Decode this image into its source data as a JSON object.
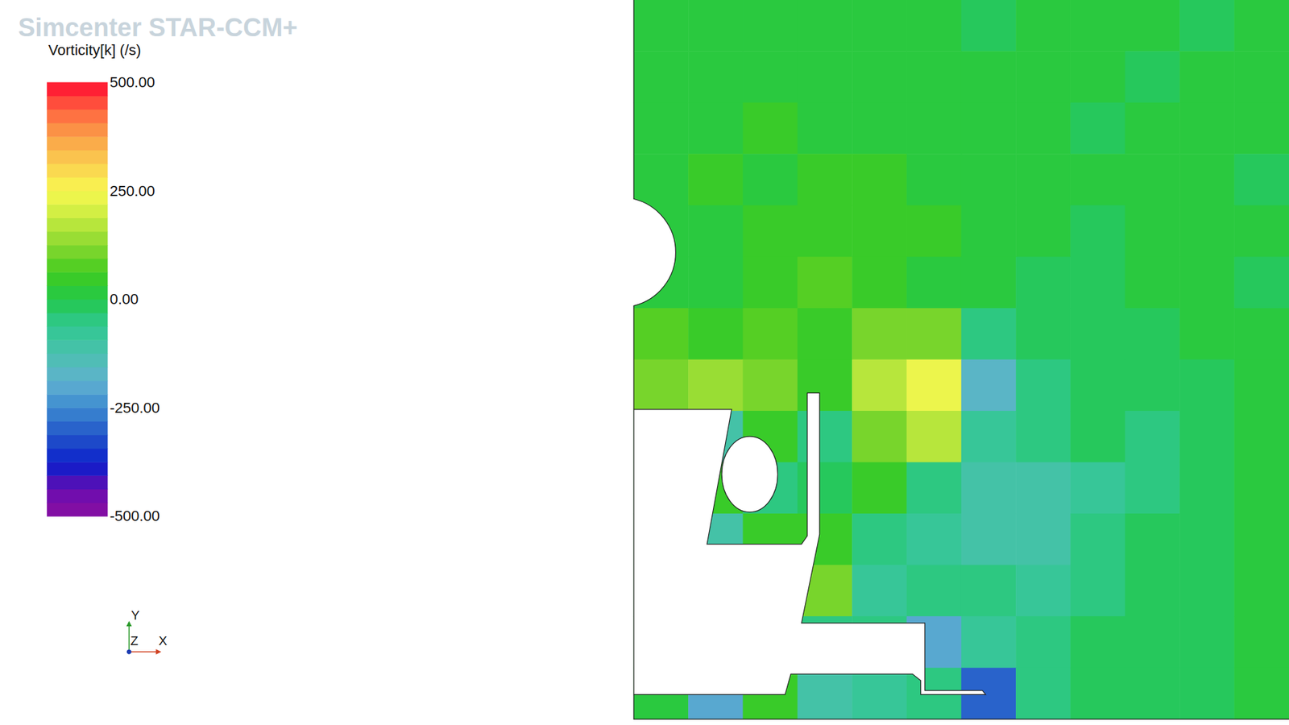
{
  "chart_data": {
    "type": "heatmap",
    "title": "Simcenter STAR-CCM+",
    "colorbar_title": "Vorticity[k] (/s)",
    "colorbar_range": [
      -500,
      500
    ],
    "colorbar_ticks": [
      {
        "value": 500,
        "label": "500.00"
      },
      {
        "value": 250,
        "label": "250.00"
      },
      {
        "value": 0,
        "label": "0.00"
      },
      {
        "value": -250,
        "label": "-250.00"
      },
      {
        "value": -500,
        "label": "-500.00"
      }
    ],
    "axis_labels": {
      "x": "X",
      "y": "Y",
      "z": "Z"
    },
    "tick_labels": false,
    "cells": [
      [
        10,
        0,
        10,
        20,
        10,
        0,
        -10,
        0,
        10,
        0,
        -10,
        0
      ],
      [
        20,
        30,
        20,
        10,
        30,
        10,
        0,
        10,
        0,
        -10,
        0,
        0
      ],
      [
        30,
        20,
        40,
        30,
        20,
        30,
        10,
        0,
        -10,
        0,
        10,
        0
      ],
      [
        0,
        40,
        30,
        40,
        50,
        30,
        20,
        10,
        0,
        10,
        0,
        -10
      ],
      [
        0,
        20,
        40,
        50,
        60,
        40,
        10,
        0,
        -20,
        0,
        10,
        0
      ],
      [
        0,
        30,
        60,
        70,
        60,
        20,
        10,
        -20,
        -10,
        20,
        0,
        -10
      ],
      [
        80,
        60,
        80,
        60,
        100,
        120,
        -40,
        -30,
        -20,
        -10,
        0,
        0
      ],
      [
        120,
        150,
        100,
        40,
        160,
        230,
        -180,
        -60,
        -30,
        -20,
        -10,
        0
      ],
      [
        0,
        -120,
        60,
        -40,
        120,
        160,
        -80,
        -50,
        -30,
        -40,
        -20,
        0
      ],
      [
        0,
        50,
        -60,
        -20,
        60,
        -60,
        -100,
        -120,
        -80,
        -40,
        -20,
        0
      ],
      [
        0,
        -100,
        60,
        40,
        -40,
        -80,
        -120,
        -100,
        -60,
        -30,
        -20,
        0
      ],
      [
        0,
        0,
        0,
        100,
        -80,
        -40,
        -60,
        -80,
        -40,
        -20,
        -10,
        0
      ],
      [
        0,
        0,
        0,
        -60,
        -40,
        -200,
        -80,
        -40,
        -30,
        -20,
        -10,
        0
      ],
      [
        0,
        -200,
        60,
        -100,
        -80,
        -60,
        -300,
        -40,
        -20,
        -10,
        -10,
        0
      ]
    ]
  }
}
